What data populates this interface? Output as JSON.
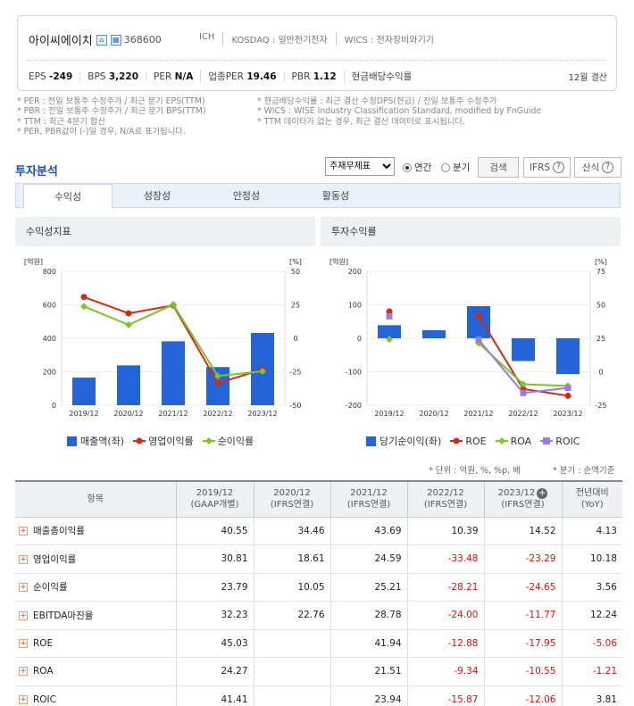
{
  "company": {
    "name": "아이씨에이치",
    "code": "368600",
    "icon1": "home-icon",
    "icon2": "building-icon"
  },
  "tags": [
    "ICH",
    "KOSDAQ : 일반전기전자",
    "WICS : 전자장비와기기"
  ],
  "stats": [
    {
      "label": "EPS",
      "value": "-249"
    },
    {
      "label": "BPS",
      "value": "3,220"
    },
    {
      "label": "PER",
      "value": "N/A"
    },
    {
      "label": "업종PER",
      "value": "19.46"
    },
    {
      "label": "PBR",
      "value": "1.12"
    },
    {
      "label": "현금배당수익률",
      "value": ""
    }
  ],
  "fiscal": "12월 결산",
  "notes_left": [
    "* PER : 전일 보통주 수정주가 / 최근 분기 EPS(TTM)",
    "* PBR : 전일 보통주 수정주가 / 최근 분기 BPS(TTM)",
    "* TTM : 최근 4분기 합산",
    "* PER, PBR값이 (-)일 경우, N/A로 표기됩니다."
  ],
  "notes_right": [
    "* 현금배당수익률 : 최근 결산 수정DPS(현금) / 전일 보통주 수정주가",
    "* WICS : WISE Industry Classification Standard, modified by FnGuide",
    "* TTM 데이터가 없는 경우, 최근 결산 데이터로 표시됩니다."
  ],
  "section_title": "투자분석",
  "controls": {
    "select": "주재무제표",
    "annual": "연간",
    "quarter": "분기",
    "search": "검색",
    "ifrs": "IFRS",
    "calc": "산식"
  },
  "tabs": [
    "수익성",
    "성장성",
    "안정성",
    "활동성"
  ],
  "panel1": {
    "title": "수익성지표",
    "legend": [
      "매출액(좌)",
      "영업이익률",
      "순이익률"
    ]
  },
  "panel2": {
    "title": "투자수익률",
    "legend": [
      "당기순이익(좌)",
      "ROE",
      "ROA",
      "ROIC"
    ]
  },
  "colors": {
    "bar": "#2563d8",
    "red": "#d12b16",
    "green": "#7ac52b",
    "purple": "#a07ad8"
  },
  "chart_data": [
    {
      "type": "bar",
      "title": "수익성지표",
      "categories": [
        "2019/12",
        "2020/12",
        "2021/12",
        "2022/12",
        "2023/12"
      ],
      "left_unit": "[억원]",
      "right_unit": "[%]",
      "ylim_left": [
        0,
        800
      ],
      "ylim_right": [
        -50,
        50
      ],
      "left_ticks": [
        "800",
        "600",
        "400",
        "200",
        "0"
      ],
      "right_ticks": [
        "50",
        "25",
        "0",
        "-25",
        "-50"
      ],
      "series": [
        {
          "name": "매출액(좌)",
          "axis": "left",
          "values": [
            165,
            238,
            382,
            228,
            432
          ]
        },
        {
          "name": "영업이익률",
          "axis": "right",
          "type": "line",
          "values": [
            30.81,
            18.61,
            24.59,
            -33.48,
            -23.29
          ]
        },
        {
          "name": "순이익률",
          "axis": "right",
          "type": "line",
          "values": [
            23.79,
            10.05,
            25.21,
            -28.21,
            -24.65
          ]
        }
      ]
    },
    {
      "type": "bar",
      "title": "투자수익률",
      "categories": [
        "2019/12",
        "2020/12",
        "2021/12",
        "2022/12",
        "2023/12"
      ],
      "left_unit": "[억원]",
      "right_unit": "[%]",
      "ylim_left": [
        -200,
        200
      ],
      "ylim_right": [
        -25,
        75
      ],
      "left_ticks": [
        "200",
        "100",
        "0",
        "-100",
        "-200"
      ],
      "right_ticks": [
        "75",
        "50",
        "25",
        "0",
        "-25"
      ],
      "series": [
        {
          "name": "당기순이익(좌)",
          "axis": "left",
          "values": [
            39,
            24,
            96,
            -68,
            -107
          ]
        },
        {
          "name": "ROE",
          "axis": "right",
          "type": "line",
          "values": [
            45.03,
            null,
            41.94,
            -12.88,
            -17.95
          ]
        },
        {
          "name": "ROA",
          "axis": "right",
          "type": "line",
          "values": [
            24.27,
            null,
            21.51,
            -9.34,
            -10.55
          ]
        },
        {
          "name": "ROIC",
          "axis": "right",
          "type": "line",
          "values": [
            41.41,
            null,
            23.94,
            -15.87,
            -12.06
          ]
        }
      ]
    }
  ],
  "unit_note": "* 단위 : 억원, %, %p, 배",
  "period_note": "* 분기 : 순액기준",
  "table": {
    "headers": [
      [
        "항목",
        ""
      ],
      [
        "2019/12",
        "(GAAP개별)"
      ],
      [
        "2020/12",
        "(IFRS연결)"
      ],
      [
        "2021/12",
        "(IFRS연결)"
      ],
      [
        "2022/12",
        "(IFRS연결)"
      ],
      [
        "2023/12",
        "(IFRS연결)"
      ],
      [
        "전년대비",
        "(YoY)"
      ]
    ],
    "rows": [
      [
        "매출총이익률",
        "40.55",
        "34.46",
        "43.69",
        "10.39",
        "14.52",
        "4.13"
      ],
      [
        "영업이익률",
        "30.81",
        "18.61",
        "24.59",
        "-33.48",
        "-23.29",
        "10.18"
      ],
      [
        "순이익률",
        "23.79",
        "10.05",
        "25.21",
        "-28.21",
        "-24.65",
        "3.56"
      ],
      [
        "EBITDA마진율",
        "32.23",
        "22.76",
        "28.78",
        "-24.00",
        "-11.77",
        "12.24"
      ],
      [
        "ROE",
        "45.03",
        "",
        "41.94",
        "-12.88",
        "-17.95",
        "-5.06"
      ],
      [
        "ROA",
        "24.27",
        "",
        "21.51",
        "-9.34",
        "-10.55",
        "-1.21"
      ],
      [
        "ROIC",
        "41.41",
        "",
        "23.94",
        "-15.87",
        "-12.06",
        "3.81"
      ]
    ]
  }
}
